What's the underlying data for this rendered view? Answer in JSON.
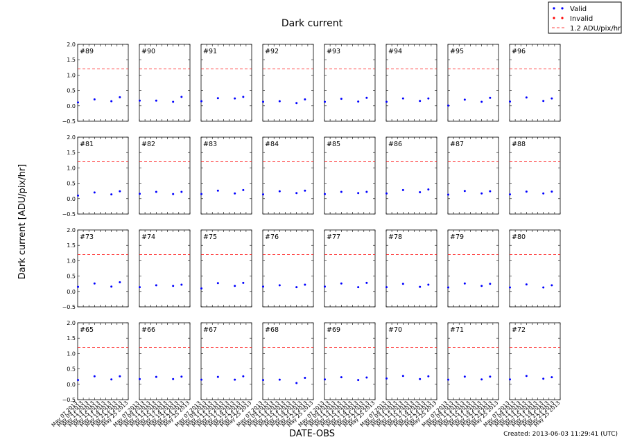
{
  "chart_data": {
    "type": "scatter",
    "title": "Dark current",
    "xlabel": "DATE-OBS",
    "ylabel": "Dark current [ADU/pix/hr]",
    "ylim": [
      -0.5,
      2.0
    ],
    "y_ticks": [
      "2.0",
      "1.5",
      "1.0",
      "0.5",
      "0.0",
      "−0.5"
    ],
    "x_tick_labels": [
      "May 07 2013",
      "May 09 2013",
      "May 11 2013",
      "May 13 2013",
      "May 15 2013",
      "May 17 2013",
      "May 19 2013",
      "May 21 2013",
      "May 23 2013",
      "May 25 2013"
    ],
    "xlim": [
      "2013-05-07",
      "2013-05-25"
    ],
    "threshold": 1.2,
    "grid": false,
    "legend_position": "top-right",
    "legend": [
      {
        "label": "Valid",
        "marker": "dots",
        "color": "#0000ff"
      },
      {
        "label": "Invalid",
        "marker": "dots",
        "color": "#ff0000"
      },
      {
        "label": "1.2 ADU/pix/hr",
        "marker": "dashed-line",
        "color": "#ff0000"
      }
    ],
    "observation_dates": [
      "2013-05-07",
      "2013-05-13",
      "2013-05-19",
      "2013-05-22"
    ],
    "panels": [
      {
        "label": "#89",
        "values": [
          0.11,
          0.21,
          0.15,
          0.28
        ]
      },
      {
        "label": "#90",
        "values": [
          0.17,
          0.17,
          0.13,
          0.29
        ]
      },
      {
        "label": "#91",
        "values": [
          0.15,
          0.25,
          0.24,
          0.29
        ]
      },
      {
        "label": "#92",
        "values": [
          0.13,
          0.15,
          0.09,
          0.21
        ]
      },
      {
        "label": "#93",
        "values": [
          0.13,
          0.23,
          0.14,
          0.26
        ]
      },
      {
        "label": "#94",
        "values": [
          0.13,
          0.24,
          0.16,
          0.24
        ]
      },
      {
        "label": "#95",
        "values": [
          0.01,
          0.2,
          0.13,
          0.26
        ]
      },
      {
        "label": "#96",
        "values": [
          0.14,
          0.27,
          0.16,
          0.24
        ]
      },
      {
        "label": "#81",
        "values": [
          0.1,
          0.2,
          0.14,
          0.24
        ]
      },
      {
        "label": "#82",
        "values": [
          0.16,
          0.22,
          0.15,
          0.22
        ]
      },
      {
        "label": "#83",
        "values": [
          0.15,
          0.26,
          0.17,
          0.28
        ]
      },
      {
        "label": "#84",
        "values": [
          0.14,
          0.24,
          0.18,
          0.26
        ]
      },
      {
        "label": "#85",
        "values": [
          0.15,
          0.22,
          0.18,
          0.22
        ]
      },
      {
        "label": "#86",
        "values": [
          0.17,
          0.28,
          0.21,
          0.3
        ]
      },
      {
        "label": "#87",
        "values": [
          0.13,
          0.25,
          0.17,
          0.24
        ]
      },
      {
        "label": "#88",
        "values": [
          0.14,
          0.23,
          0.17,
          0.23
        ]
      },
      {
        "label": "#73",
        "values": [
          0.15,
          0.26,
          0.16,
          0.3
        ]
      },
      {
        "label": "#74",
        "values": [
          0.14,
          0.2,
          0.18,
          0.22
        ]
      },
      {
        "label": "#75",
        "values": [
          0.1,
          0.27,
          0.18,
          0.28
        ]
      },
      {
        "label": "#76",
        "values": [
          0.16,
          0.2,
          0.14,
          0.22
        ]
      },
      {
        "label": "#77",
        "values": [
          0.16,
          0.26,
          0.14,
          0.28
        ]
      },
      {
        "label": "#78",
        "values": [
          0.14,
          0.25,
          0.15,
          0.22
        ]
      },
      {
        "label": "#79",
        "values": [
          0.13,
          0.26,
          0.18,
          0.25
        ]
      },
      {
        "label": "#80",
        "values": [
          0.13,
          0.23,
          0.13,
          0.2
        ]
      },
      {
        "label": "#65",
        "values": [
          0.14,
          0.26,
          0.16,
          0.26
        ]
      },
      {
        "label": "#66",
        "values": [
          0.17,
          0.24,
          0.17,
          0.25
        ]
      },
      {
        "label": "#67",
        "values": [
          0.15,
          0.24,
          0.15,
          0.26
        ]
      },
      {
        "label": "#68",
        "values": [
          0.14,
          0.15,
          0.04,
          0.21
        ]
      },
      {
        "label": "#69",
        "values": [
          0.16,
          0.23,
          0.14,
          0.22
        ]
      },
      {
        "label": "#70",
        "values": [
          0.19,
          0.27,
          0.17,
          0.26
        ]
      },
      {
        "label": "#71",
        "values": [
          0.15,
          0.25,
          0.16,
          0.25
        ]
      },
      {
        "label": "#72",
        "values": [
          0.16,
          0.27,
          0.18,
          0.23
        ]
      }
    ]
  },
  "footer": {
    "created": "Created: 2013-06-03 11:29:41 (UTC)"
  }
}
